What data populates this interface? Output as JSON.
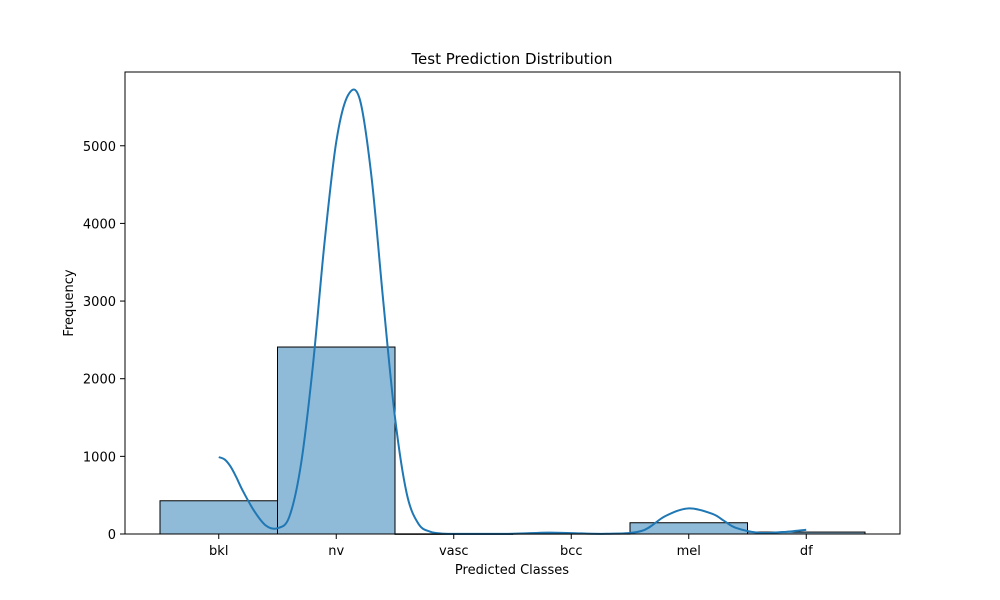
{
  "chart_data": {
    "type": "bar",
    "title": "Test Prediction Distribution",
    "xlabel": "Predicted Classes",
    "ylabel": "Frequency",
    "categories": [
      "bkl",
      "nv",
      "vasc",
      "bcc",
      "mel",
      "df"
    ],
    "values": [
      428,
      2408,
      2,
      5,
      145,
      25
    ],
    "ylim": [
      0,
      5950
    ],
    "yticks": [
      0,
      1000,
      2000,
      3000,
      4000,
      5000
    ],
    "grid": false,
    "bar_color": "#1f77b4",
    "bar_opacity": 0.5,
    "edge_color": "#000000",
    "kde_curve": {
      "color": "#1f77b4",
      "x": [
        0,
        0.05,
        0.1,
        0.15,
        0.2,
        0.3,
        0.4,
        0.5,
        0.6,
        0.7,
        0.8,
        0.9,
        1.0,
        1.1,
        1.2,
        1.3,
        1.4,
        1.5,
        1.6,
        1.7,
        1.8,
        1.9,
        2.0,
        2.2,
        2.5,
        2.8,
        3.0,
        3.3,
        3.6,
        3.8,
        4.0,
        4.2,
        4.3,
        4.4,
        4.6,
        4.8,
        5.0
      ],
      "y": [
        990,
        960,
        870,
        730,
        570,
        300,
        110,
        75,
        220,
        900,
        2150,
        3750,
        5050,
        5650,
        5600,
        4600,
        3000,
        1500,
        520,
        130,
        30,
        5,
        2,
        1,
        3,
        18,
        12,
        3,
        40,
        230,
        330,
        260,
        170,
        80,
        15,
        25,
        55
      ]
    }
  }
}
